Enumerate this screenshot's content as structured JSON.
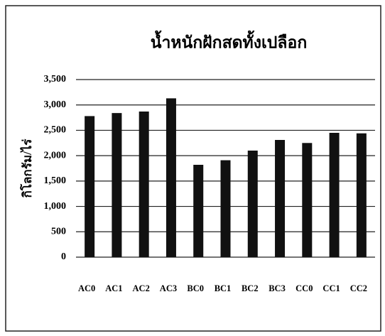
{
  "chart_data": {
    "type": "bar",
    "title": "น้ำหนักฝักสดทั้งเปลือก",
    "y_label": "กิโลกรัม/ไร่",
    "categories": [
      "AC0",
      "AC1",
      "AC2",
      "AC3",
      "BC0",
      "BC1",
      "BC2",
      "BC3",
      "CC0",
      "CC1",
      "CC2"
    ],
    "values": [
      2780,
      2840,
      2870,
      3130,
      1820,
      1910,
      2100,
      2310,
      2250,
      2450,
      2440
    ],
    "color": "#111111",
    "ylim": [
      0,
      3500
    ],
    "yticks": [
      0,
      500,
      {
        "value": 1000,
        "label": "1,000"
      },
      {
        "value": 1500,
        "label": "1,500"
      },
      {
        "value": 2000,
        "label": "2,000"
      },
      {
        "value": 2500,
        "label": "2,500"
      },
      {
        "value": 3000,
        "label": "3,000"
      },
      {
        "value": 3500,
        "label": "3,500"
      }
    ],
    "grid": true
  }
}
